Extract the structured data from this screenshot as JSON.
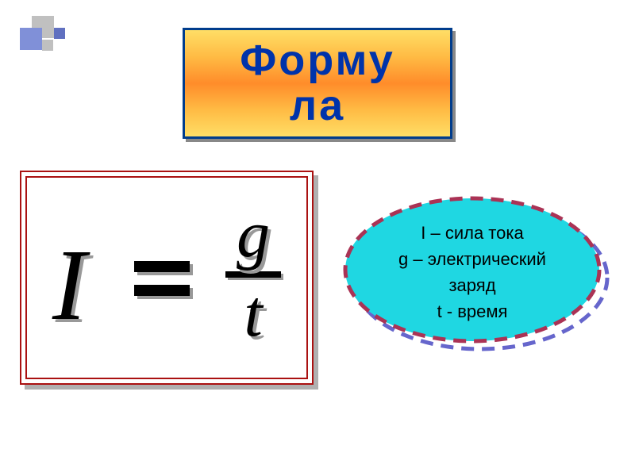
{
  "title": {
    "text": "Форму\nла",
    "color": "#0033aa",
    "fontsize": 54,
    "box_border": "#003c8c",
    "gradient_top": "#ffde66",
    "gradient_mid": "#ff8c2a"
  },
  "decor": {
    "color1": "#c0c0c0",
    "color2": "#8090d8",
    "color3": "#6070c0"
  },
  "formula": {
    "lhs": "I",
    "numerator": "g",
    "denominator": "t",
    "border_color": "#aa1111",
    "text_color": "#000000",
    "shadow_color": "#999999",
    "I_fontsize": 128,
    "frac_fontsize": 84
  },
  "legend": {
    "line1": "I – сила тока",
    "line2": "g – электрический",
    "line3": "заряд",
    "line4": "t - время",
    "fill": "#1fd7e2",
    "dash_color_main": "#aa3355",
    "dash_color_shadow": "#6666cc",
    "fontsize": 22
  }
}
